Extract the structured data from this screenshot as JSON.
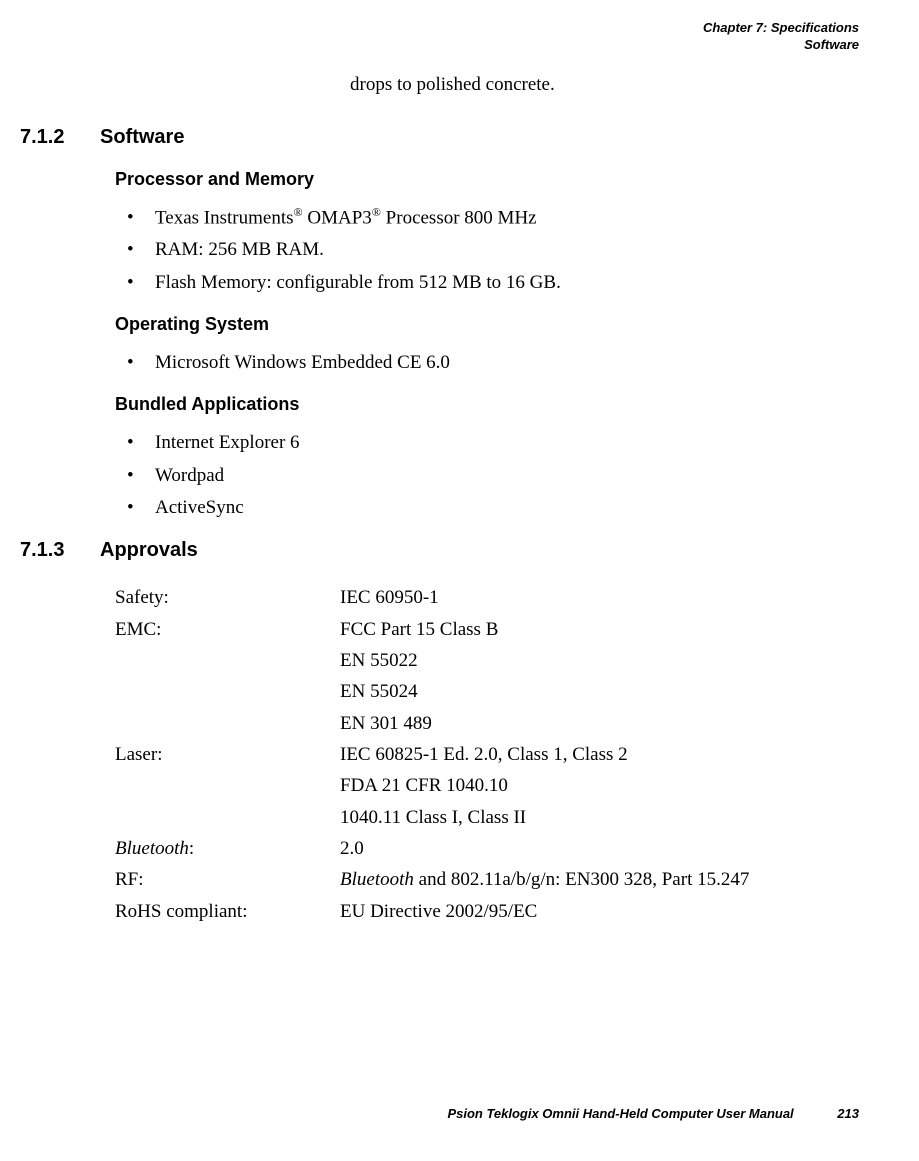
{
  "header": {
    "chapter": "Chapter 7:  Specifications",
    "section": "Software"
  },
  "continuation": "drops to polished concrete.",
  "sections": [
    {
      "number": "7.1.2",
      "title": "Software",
      "subsections": [
        {
          "title": "Processor and Memory",
          "items": [
            {
              "prefix": "Texas Instruments",
              "sup1": "®",
              "mid": " OMAP3",
              "sup2": "®",
              "suffix": " Processor 800 MHz"
            },
            {
              "text": "RAM: 256 MB RAM."
            },
            {
              "text": "Flash Memory: configurable from 512 MB to 16 GB."
            }
          ]
        },
        {
          "title": "Operating System",
          "items": [
            {
              "text": "Microsoft Windows Embedded CE 6.0"
            }
          ]
        },
        {
          "title": "Bundled Applications",
          "items": [
            {
              "text": "Internet Explorer 6"
            },
            {
              "text": "Wordpad"
            },
            {
              "text": "ActiveSync"
            }
          ]
        }
      ]
    },
    {
      "number": "7.1.3",
      "title": "Approvals",
      "approvals": [
        {
          "label": "Safety:",
          "values": [
            "IEC 60950-1"
          ]
        },
        {
          "label": "EMC:",
          "values": [
            "FCC Part 15 Class B",
            "EN 55022",
            "EN 55024",
            "EN 301 489"
          ]
        },
        {
          "label": "Laser:",
          "values": [
            "IEC 60825-1 Ed. 2.0, Class 1, Class 2",
            "FDA 21 CFR 1040.10",
            "1040.11 Class I, Class II"
          ]
        },
        {
          "label": "Bluetooth",
          "labelItalic": true,
          "labelSuffix": ":",
          "values": [
            "2.0"
          ]
        },
        {
          "label": "RF:",
          "values": [
            {
              "italic": "Bluetooth",
              "rest": " and 802.11a/b/g/n: EN300 328, Part 15.247"
            }
          ]
        },
        {
          "label": "RoHS compliant:",
          "values": [
            "EU Directive 2002/95/EC"
          ]
        }
      ]
    }
  ],
  "footer": {
    "text": "Psion Teklogix Omnii Hand-Held Computer User Manual",
    "page": "213"
  }
}
